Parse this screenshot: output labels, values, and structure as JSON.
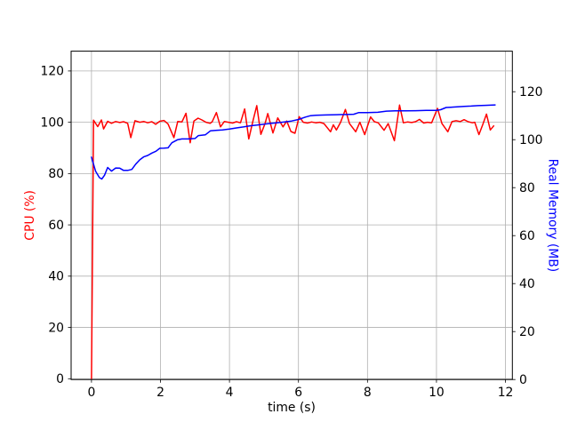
{
  "figure": {
    "background": "#ffffff",
    "title": ""
  },
  "chart_data": {
    "type": "line",
    "title": "",
    "xlabel": "time (s)",
    "ylabel_left": "CPU (%)",
    "ylabel_right": "Real Memory (MB)",
    "xlim": [
      -0.59,
      12.2
    ],
    "ylim_left": [
      -0.31,
      127.72
    ],
    "ylim_right": [
      0,
      136.9
    ],
    "x_ticks": [
      0,
      2,
      4,
      6,
      8,
      10,
      12
    ],
    "y_ticks_left": [
      0,
      20,
      40,
      60,
      80,
      100,
      120
    ],
    "y_ticks_right": [
      0,
      20,
      40,
      60,
      80,
      100,
      120
    ],
    "grid": true,
    "grid_color": "#b0b0b0",
    "spine_color": "#000000",
    "tick_color": "#000000",
    "legend": "none",
    "series": [
      {
        "name": "CPU (%)",
        "axis": "left",
        "color": "#ff0000",
        "points": [
          [
            0.0,
            0.0
          ],
          [
            0.06,
            100.8
          ],
          [
            0.18,
            98.3
          ],
          [
            0.29,
            100.9
          ],
          [
            0.35,
            97.4
          ],
          [
            0.47,
            100.4
          ],
          [
            0.58,
            99.6
          ],
          [
            0.7,
            100.3
          ],
          [
            0.82,
            99.9
          ],
          [
            0.93,
            100.2
          ],
          [
            1.05,
            99.6
          ],
          [
            1.14,
            94.0
          ],
          [
            1.26,
            100.6
          ],
          [
            1.4,
            100.0
          ],
          [
            1.52,
            100.3
          ],
          [
            1.63,
            99.8
          ],
          [
            1.75,
            100.2
          ],
          [
            1.86,
            99.2
          ],
          [
            1.98,
            100.4
          ],
          [
            2.1,
            100.7
          ],
          [
            2.22,
            99.3
          ],
          [
            2.39,
            94.0
          ],
          [
            2.5,
            100.3
          ],
          [
            2.62,
            100.1
          ],
          [
            2.74,
            103.5
          ],
          [
            2.86,
            92.0
          ],
          [
            2.97,
            100.5
          ],
          [
            3.09,
            101.6
          ],
          [
            3.2,
            100.9
          ],
          [
            3.32,
            100.0
          ],
          [
            3.44,
            99.6
          ],
          [
            3.5,
            100.2
          ],
          [
            3.62,
            103.8
          ],
          [
            3.74,
            98.2
          ],
          [
            3.85,
            100.3
          ],
          [
            3.97,
            100.0
          ],
          [
            4.09,
            99.7
          ],
          [
            4.2,
            100.2
          ],
          [
            4.32,
            99.8
          ],
          [
            4.44,
            105.2
          ],
          [
            4.56,
            93.5
          ],
          [
            4.68,
            100.5
          ],
          [
            4.79,
            106.5
          ],
          [
            4.91,
            95.3
          ],
          [
            5.03,
            99.5
          ],
          [
            5.11,
            103.4
          ],
          [
            5.26,
            95.8
          ],
          [
            5.4,
            101.7
          ],
          [
            5.55,
            98.2
          ],
          [
            5.66,
            100.5
          ],
          [
            5.78,
            96.4
          ],
          [
            5.9,
            95.7
          ],
          [
            6.02,
            102.2
          ],
          [
            6.14,
            100.0
          ],
          [
            6.26,
            99.7
          ],
          [
            6.38,
            100.1
          ],
          [
            6.5,
            99.8
          ],
          [
            6.62,
            100.0
          ],
          [
            6.74,
            99.5
          ],
          [
            6.93,
            96.3
          ],
          [
            7.01,
            99.0
          ],
          [
            7.1,
            97.0
          ],
          [
            7.22,
            100.0
          ],
          [
            7.36,
            105.0
          ],
          [
            7.48,
            99.5
          ],
          [
            7.66,
            96.3
          ],
          [
            7.78,
            100.0
          ],
          [
            7.92,
            95.2
          ],
          [
            8.09,
            102.1
          ],
          [
            8.2,
            100.2
          ],
          [
            8.31,
            99.8
          ],
          [
            8.48,
            96.9
          ],
          [
            8.6,
            99.5
          ],
          [
            8.78,
            92.8
          ],
          [
            8.93,
            106.7
          ],
          [
            9.04,
            99.8
          ],
          [
            9.16,
            100.1
          ],
          [
            9.28,
            99.9
          ],
          [
            9.39,
            100.2
          ],
          [
            9.51,
            101.1
          ],
          [
            9.63,
            99.7
          ],
          [
            9.74,
            100.0
          ],
          [
            9.86,
            99.8
          ],
          [
            10.03,
            105.4
          ],
          [
            10.16,
            99.5
          ],
          [
            10.33,
            96.3
          ],
          [
            10.45,
            100.3
          ],
          [
            10.57,
            100.6
          ],
          [
            10.69,
            100.3
          ],
          [
            10.8,
            101.0
          ],
          [
            10.92,
            100.2
          ],
          [
            11.04,
            99.8
          ],
          [
            11.11,
            100.0
          ],
          [
            11.23,
            95.2
          ],
          [
            11.34,
            99.0
          ],
          [
            11.45,
            103.2
          ],
          [
            11.56,
            97.0
          ],
          [
            11.66,
            98.6
          ]
        ]
      },
      {
        "name": "Real Memory (MB)",
        "axis": "right",
        "color": "#0000ff",
        "points": [
          [
            0.0,
            92.7
          ],
          [
            0.12,
            86.8
          ],
          [
            0.23,
            84.2
          ],
          [
            0.3,
            83.6
          ],
          [
            0.38,
            85.2
          ],
          [
            0.47,
            88.4
          ],
          [
            0.58,
            86.9
          ],
          [
            0.7,
            88.2
          ],
          [
            0.82,
            88.1
          ],
          [
            0.93,
            87.2
          ],
          [
            1.05,
            87.2
          ],
          [
            1.17,
            87.6
          ],
          [
            1.28,
            89.8
          ],
          [
            1.4,
            91.6
          ],
          [
            1.52,
            92.9
          ],
          [
            1.63,
            93.4
          ],
          [
            1.75,
            94.4
          ],
          [
            1.87,
            95.2
          ],
          [
            1.98,
            96.4
          ],
          [
            2.1,
            96.5
          ],
          [
            2.22,
            96.6
          ],
          [
            2.33,
            98.7
          ],
          [
            2.5,
            100.0
          ],
          [
            2.62,
            100.3
          ],
          [
            2.8,
            100.3
          ],
          [
            3.0,
            100.5
          ],
          [
            3.1,
            101.7
          ],
          [
            3.3,
            102.0
          ],
          [
            3.45,
            103.7
          ],
          [
            3.6,
            103.9
          ],
          [
            3.8,
            104.1
          ],
          [
            4.0,
            104.4
          ],
          [
            4.2,
            104.9
          ],
          [
            4.4,
            105.3
          ],
          [
            4.6,
            105.8
          ],
          [
            4.8,
            106.1
          ],
          [
            5.0,
            106.5
          ],
          [
            5.2,
            106.8
          ],
          [
            5.4,
            107.1
          ],
          [
            5.6,
            107.4
          ],
          [
            5.8,
            107.8
          ],
          [
            6.0,
            108.4
          ],
          [
            6.2,
            109.4
          ],
          [
            6.35,
            110.0
          ],
          [
            6.5,
            110.2
          ],
          [
            6.8,
            110.3
          ],
          [
            7.1,
            110.4
          ],
          [
            7.4,
            110.5
          ],
          [
            7.6,
            110.6
          ],
          [
            7.75,
            111.3
          ],
          [
            8.0,
            111.3
          ],
          [
            8.3,
            111.4
          ],
          [
            8.55,
            111.9
          ],
          [
            8.8,
            112.0
          ],
          [
            9.1,
            112.0
          ],
          [
            9.4,
            112.1
          ],
          [
            9.7,
            112.2
          ],
          [
            10.0,
            112.2
          ],
          [
            10.12,
            112.5
          ],
          [
            10.28,
            113.4
          ],
          [
            10.5,
            113.6
          ],
          [
            10.8,
            113.9
          ],
          [
            11.0,
            114.0
          ],
          [
            11.2,
            114.2
          ],
          [
            11.4,
            114.3
          ],
          [
            11.7,
            114.5
          ]
        ]
      }
    ]
  }
}
